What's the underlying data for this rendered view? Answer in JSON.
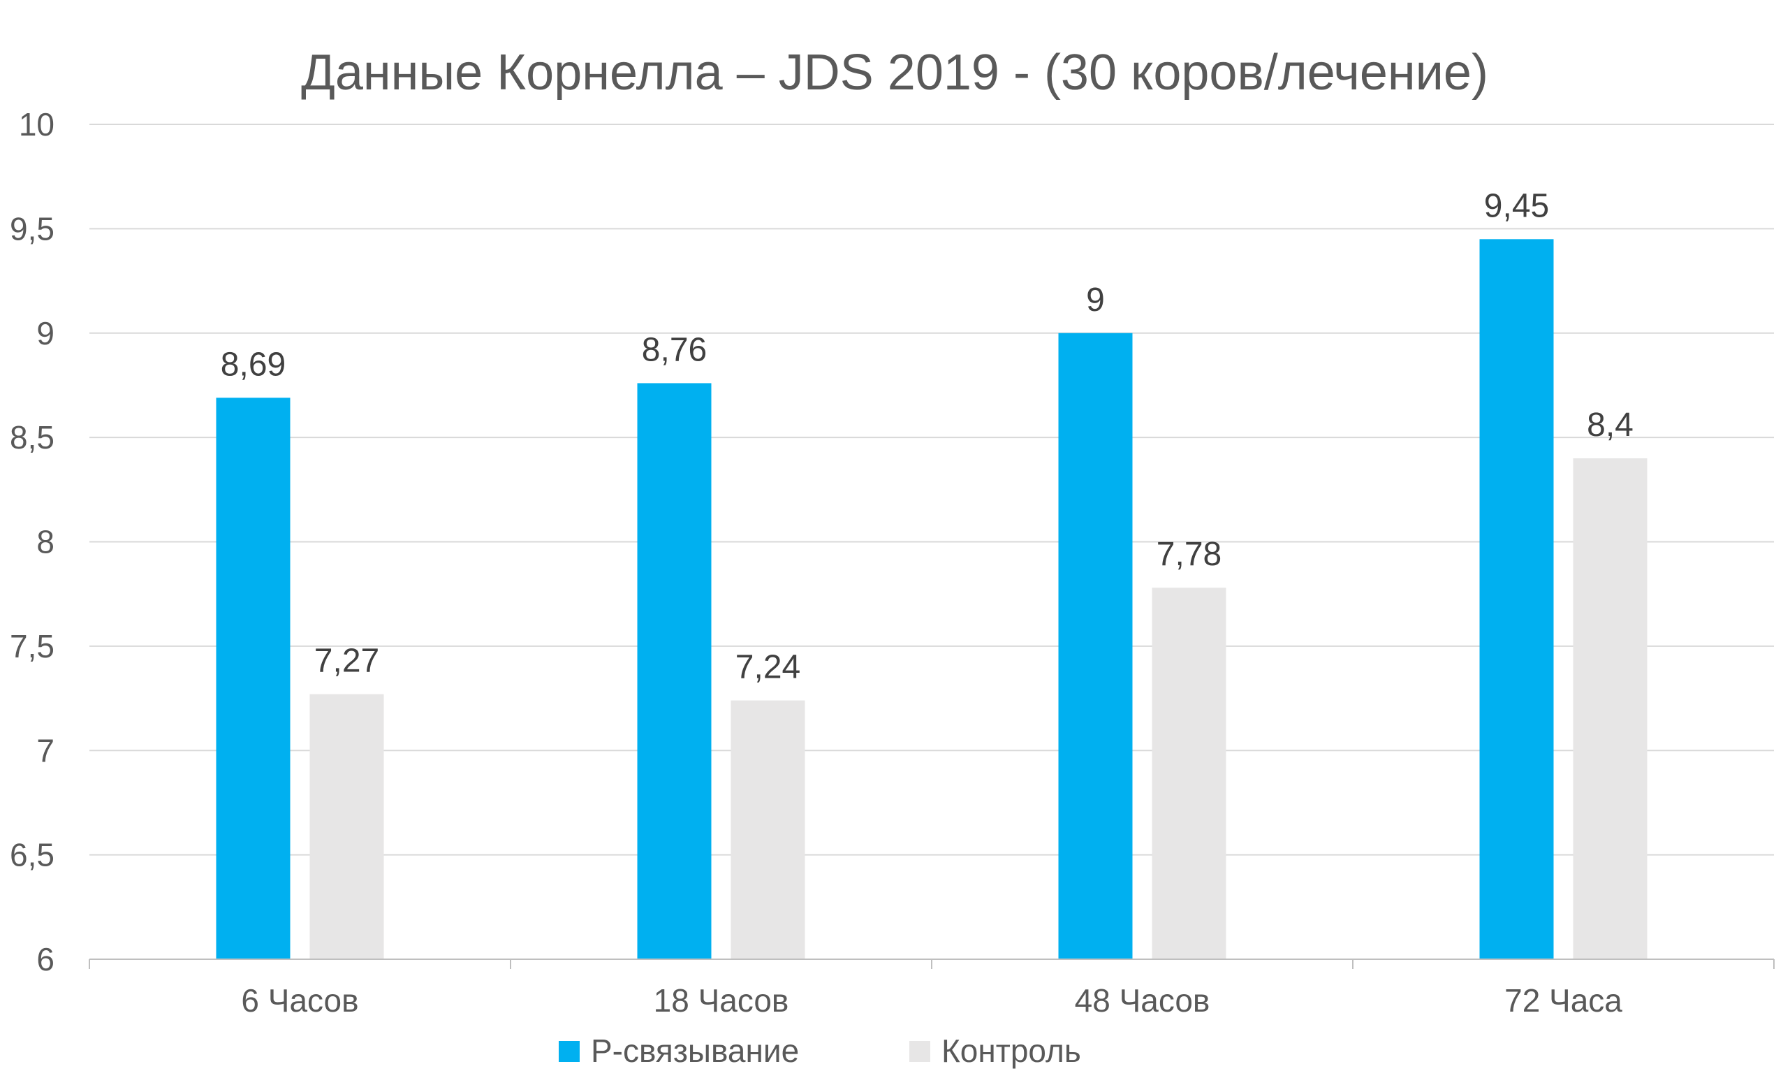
{
  "colors": {
    "series_1": "#00b0f0",
    "series_2": "#e7e6e6",
    "text": "#595959",
    "grid": "#d9d9d9"
  },
  "chart_data": {
    "type": "bar",
    "title": "Данные Корнелла – JDS 2019 - (30 коров/лечение)",
    "xlabel": "",
    "ylabel": "",
    "categories": [
      "6 Часов",
      "18 Часов",
      "48 Часов",
      "72 Часа"
    ],
    "series": [
      {
        "name": "P-связывание",
        "values": [
          8.69,
          8.76,
          9,
          9.45
        ]
      },
      {
        "name": "Контроль",
        "values": [
          7.27,
          7.24,
          7.78,
          8.4
        ]
      }
    ],
    "data_labels": [
      [
        "8,69",
        "8,76",
        "9",
        "9,45"
      ],
      [
        "7,27",
        "7,24",
        "7,78",
        "8,4"
      ]
    ],
    "ylim": [
      6,
      10
    ],
    "yticks": [
      6,
      6.5,
      7,
      7.5,
      8,
      8.5,
      9,
      9.5,
      10
    ],
    "ytick_labels": [
      "6",
      "6,5",
      "7",
      "7,5",
      "8",
      "8,5",
      "9",
      "9,5",
      "10"
    ],
    "grid": true,
    "legend": "bottom"
  }
}
